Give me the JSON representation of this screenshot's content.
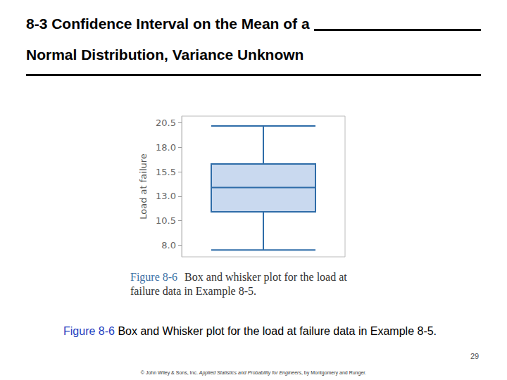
{
  "slide": {
    "title_line1": "8-3 Confidence Interval on the Mean of a",
    "title_line2": "Normal Distribution, Variance Unknown",
    "figure_caption": {
      "label": "Figure 8-6",
      "text": "Box and whisker plot for the load at failure data in Example 8-5."
    },
    "caption": {
      "label": "Figure 8-6",
      "text": "Box and Whisker plot for the load at failure data in Example 8-5."
    },
    "page_number": 29,
    "footer": {
      "prefix": "© John Wiley & Sons, Inc.",
      "book": "Applied Statistics and Probability for Engineers",
      "suffix": ", by Montgomery and Runger."
    }
  },
  "chart_data": {
    "type": "boxplot",
    "y_label": "Load at failure",
    "values": {
      "min": 7.5,
      "q1": 11.4,
      "median": 13.9,
      "q3": 16.3,
      "max": 20.2
    },
    "color": "#c9d9ef",
    "ylim": [
      6.8,
      21.2
    ],
    "yticks": [
      {
        "value": 8,
        "label": "8.0"
      },
      10.5,
      {
        "value": 13,
        "label": "13.0"
      },
      15.5,
      {
        "value": 18,
        "label": "18.0"
      },
      20.5
    ],
    "grid": false,
    "tick_labels": "y"
  }
}
